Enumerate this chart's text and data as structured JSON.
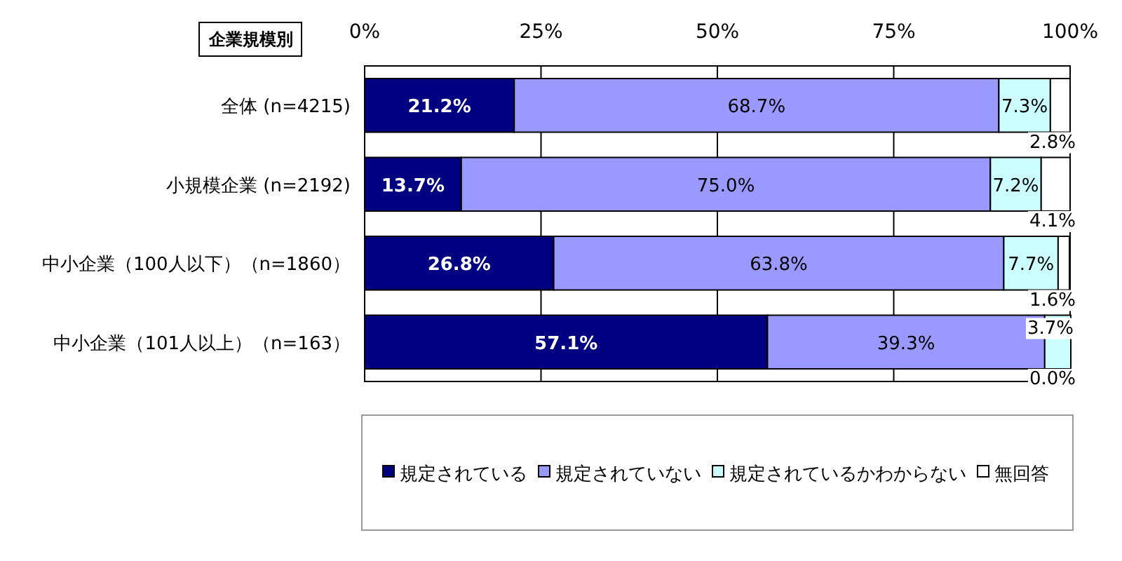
{
  "chart_data": {
    "type": "bar",
    "orientation": "horizontal",
    "stacked": true,
    "ylabel": "企業規模別",
    "categories": [
      "全体 (n=4215)",
      "小規模企業 (n=2192)",
      "中小企業（100人以下）（n=1860）",
      "中小企業（101人以上）（n=163）"
    ],
    "series": [
      {
        "name": "規定されている",
        "color": "#000080",
        "values": [
          21.2,
          13.7,
          26.8,
          57.1
        ],
        "value_labels": [
          "21.2%",
          "13.7%",
          "26.8%",
          "57.1%"
        ]
      },
      {
        "name": "規定されていない",
        "color": "#9999ff",
        "values": [
          68.7,
          75.0,
          63.8,
          39.3
        ],
        "value_labels": [
          "68.7%",
          "75.0%",
          "63.8%",
          "39.3%"
        ]
      },
      {
        "name": "規定されているかわからない",
        "color": "#ccffff",
        "values": [
          7.3,
          7.2,
          7.7,
          3.7
        ],
        "value_labels": [
          "7.3%",
          "7.2%",
          "7.7%",
          "3.7%"
        ]
      },
      {
        "name": "無回答",
        "color": "#ffffff",
        "values": [
          2.8,
          4.1,
          1.6,
          0.0
        ],
        "value_labels": [
          "2.8%",
          "4.1%",
          "1.6%",
          "0.0%"
        ]
      }
    ],
    "xlim": [
      0,
      100
    ],
    "xticks": [
      {
        "value": 0,
        "label": "0%"
      },
      {
        "value": 25,
        "label": "25%"
      },
      {
        "value": 50,
        "label": "50%"
      },
      {
        "value": 75,
        "label": "75%"
      },
      {
        "value": 100,
        "label": "100%"
      }
    ],
    "grid": "x",
    "legend": "bottom"
  }
}
